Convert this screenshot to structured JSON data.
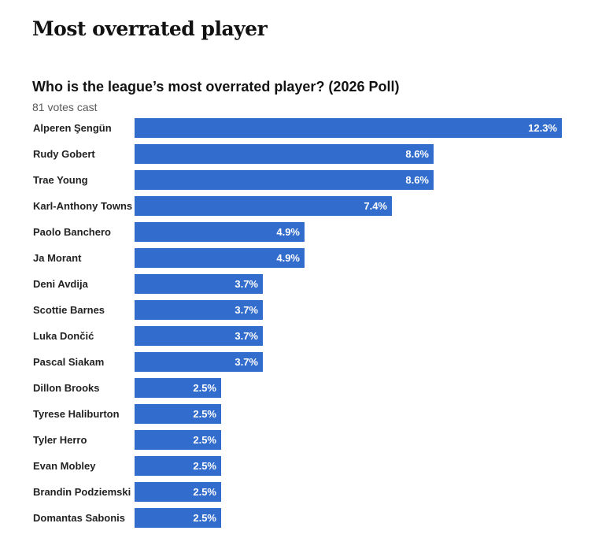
{
  "header": {
    "title": "Most overrated player"
  },
  "chart_data": {
    "type": "bar",
    "orientation": "horizontal",
    "title": "Who is the league’s most overrated player? (2026 Poll)",
    "subtitle": "81 votes cast",
    "bar_color": "#326ccc",
    "categories": [
      "Alperen Şengün",
      "Rudy Gobert",
      "Trae Young",
      "Karl-Anthony Towns",
      "Paolo Banchero",
      "Ja Morant",
      "Deni Avdija",
      "Scottie Barnes",
      "Luka Dončić",
      "Pascal Siakam",
      "Dillon Brooks",
      "Tyrese Haliburton",
      "Tyler Herro",
      "Evan Mobley",
      "Brandin Podziemski",
      "Domantas Sabonis"
    ],
    "values": [
      12.3,
      8.6,
      8.6,
      7.4,
      4.9,
      4.9,
      3.7,
      3.7,
      3.7,
      3.7,
      2.5,
      2.5,
      2.5,
      2.5,
      2.5,
      2.5
    ],
    "value_labels": [
      "12.3%",
      "8.6%",
      "8.6%",
      "7.4%",
      "4.9%",
      "4.9%",
      "3.7%",
      "3.7%",
      "3.7%",
      "3.7%",
      "2.5%",
      "2.5%",
      "2.5%",
      "2.5%",
      "2.5%",
      "2.5%"
    ],
    "xlim": [
      0,
      12.3
    ]
  }
}
